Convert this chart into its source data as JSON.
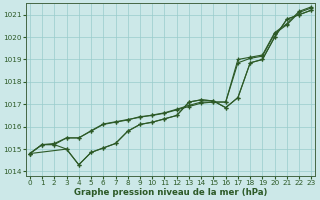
{
  "xlabel": "Graphe pression niveau de la mer (hPa)",
  "bg_color": "#cce8e8",
  "grid_color": "#99cccc",
  "line_color": "#2d5a27",
  "ylim": [
    1013.8,
    1021.5
  ],
  "xlim": [
    -0.3,
    23.3
  ],
  "yticks": [
    1014,
    1015,
    1016,
    1017,
    1018,
    1019,
    1020,
    1021
  ],
  "xticks": [
    0,
    1,
    2,
    3,
    4,
    5,
    6,
    7,
    8,
    9,
    10,
    11,
    12,
    13,
    14,
    15,
    16,
    17,
    18,
    19,
    20,
    21,
    22,
    23
  ],
  "sA_x": [
    0,
    1,
    2,
    3,
    4,
    5,
    6,
    7,
    8,
    9,
    10,
    11,
    12,
    13,
    14,
    15,
    16,
    17,
    18,
    19,
    20,
    21,
    22,
    23
  ],
  "sA_y": [
    1014.8,
    1015.2,
    1015.2,
    1015.5,
    1015.5,
    1015.8,
    1016.1,
    1016.2,
    1016.3,
    1016.45,
    1016.5,
    1016.6,
    1016.75,
    1016.9,
    1017.05,
    1017.1,
    1017.1,
    1018.85,
    1019.05,
    1019.15,
    1020.15,
    1020.55,
    1021.1,
    1021.3
  ],
  "sB_x": [
    0,
    1,
    2,
    3,
    4,
    5,
    6,
    7,
    8,
    9,
    10,
    11,
    12,
    13,
    14,
    15,
    16,
    17,
    18,
    19,
    20,
    21,
    22,
    23
  ],
  "sB_y": [
    1014.8,
    1015.2,
    1015.2,
    1015.0,
    1014.3,
    1014.85,
    1015.05,
    1015.25,
    1015.8,
    1016.1,
    1016.2,
    1016.35,
    1016.5,
    1017.1,
    1017.2,
    1017.15,
    1016.85,
    1017.3,
    1018.85,
    1019.0,
    1020.0,
    1020.8,
    1021.0,
    1021.2
  ],
  "sC_x": [
    0,
    3,
    4,
    5,
    6,
    7,
    8,
    9,
    10,
    11,
    12,
    13,
    14,
    15,
    16,
    17,
    18,
    19,
    20,
    21,
    22,
    23
  ],
  "sC_y": [
    1014.8,
    1015.0,
    1014.3,
    1014.85,
    1015.05,
    1015.25,
    1015.8,
    1016.1,
    1016.2,
    1016.35,
    1016.5,
    1017.1,
    1017.2,
    1017.15,
    1016.85,
    1017.3,
    1018.85,
    1019.0,
    1020.0,
    1020.8,
    1021.0,
    1021.2
  ],
  "sD_x": [
    0,
    1,
    2,
    3,
    4,
    5,
    6,
    7,
    8,
    9,
    10,
    11,
    12,
    13,
    14,
    15,
    16,
    17,
    18,
    19,
    20,
    21,
    22,
    23
  ],
  "sD_y": [
    1014.8,
    1015.2,
    1015.25,
    1015.5,
    1015.5,
    1015.82,
    1016.12,
    1016.22,
    1016.32,
    1016.42,
    1016.52,
    1016.62,
    1016.78,
    1016.95,
    1017.1,
    1017.1,
    1017.1,
    1019.0,
    1019.1,
    1019.2,
    1020.2,
    1020.6,
    1021.15,
    1021.35
  ]
}
